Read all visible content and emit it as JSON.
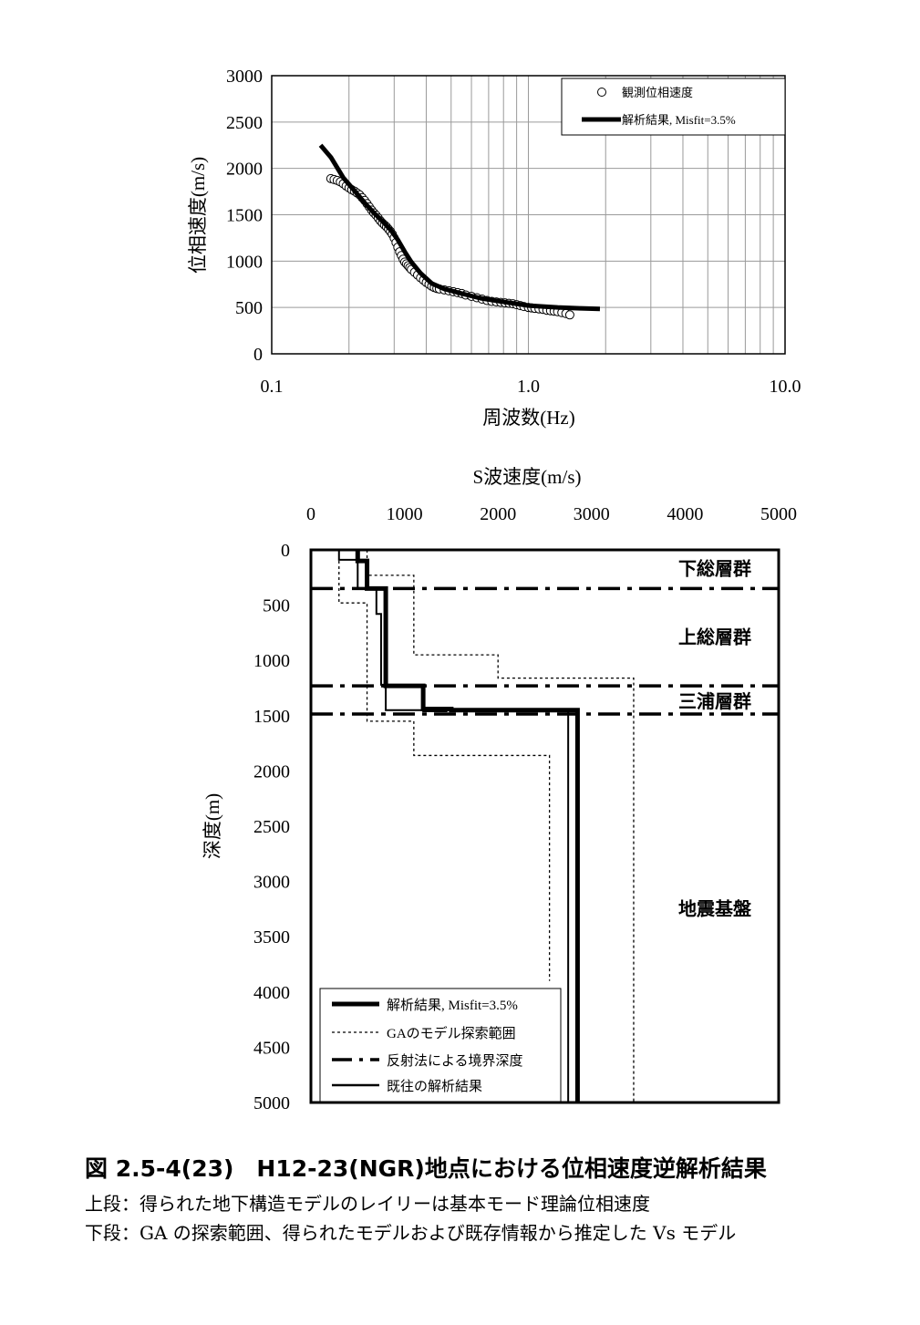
{
  "chart_data": [
    {
      "type": "scatter",
      "xscale": "log",
      "xlim": [
        0.1,
        10.0
      ],
      "ylim": [
        0,
        3000
      ],
      "xticks": [
        "0.1",
        "1.0",
        "10.0"
      ],
      "yticks": [
        "0",
        "500",
        "1000",
        "1500",
        "2000",
        "2500",
        "3000"
      ],
      "xlabel": "周波数(Hz)",
      "ylabel": "位相速度(m/s)",
      "grid": true,
      "legend_position": "top-right",
      "series": [
        {
          "name": "観測位相速度",
          "marker": "open-circle",
          "x": [
            0.17,
            0.175,
            0.18,
            0.185,
            0.19,
            0.195,
            0.2,
            0.205,
            0.21,
            0.215,
            0.22,
            0.225,
            0.23,
            0.235,
            0.24,
            0.245,
            0.25,
            0.255,
            0.26,
            0.265,
            0.27,
            0.275,
            0.28,
            0.285,
            0.29,
            0.295,
            0.3,
            0.305,
            0.31,
            0.315,
            0.32,
            0.325,
            0.33,
            0.335,
            0.34,
            0.345,
            0.35,
            0.36,
            0.37,
            0.38,
            0.39,
            0.4,
            0.41,
            0.42,
            0.43,
            0.44,
            0.45,
            0.47,
            0.49,
            0.51,
            0.53,
            0.55,
            0.57,
            0.6,
            0.63,
            0.66,
            0.69,
            0.72,
            0.75,
            0.78,
            0.81,
            0.84,
            0.87,
            0.9,
            0.93,
            0.96,
            1.0,
            1.03,
            1.06,
            1.1,
            1.14,
            1.18,
            1.22,
            1.26,
            1.3,
            1.35,
            1.4,
            1.45
          ],
          "y": [
            1890,
            1880,
            1870,
            1855,
            1835,
            1810,
            1790,
            1770,
            1755,
            1735,
            1715,
            1685,
            1655,
            1620,
            1585,
            1550,
            1520,
            1495,
            1465,
            1435,
            1410,
            1390,
            1370,
            1345,
            1320,
            1290,
            1250,
            1200,
            1150,
            1100,
            1060,
            1020,
            990,
            970,
            950,
            930,
            910,
            880,
            850,
            820,
            795,
            770,
            750,
            730,
            715,
            705,
            700,
            690,
            680,
            670,
            660,
            650,
            635,
            620,
            605,
            590,
            575,
            565,
            560,
            555,
            550,
            545,
            540,
            530,
            520,
            510,
            500,
            495,
            490,
            485,
            480,
            470,
            465,
            460,
            455,
            445,
            435,
            420
          ]
        },
        {
          "name": "解析結果, Misfit=3.5%",
          "style": "thick-line",
          "x": [
            0.155,
            0.17,
            0.19,
            0.21,
            0.23,
            0.25,
            0.27,
            0.29,
            0.31,
            0.33,
            0.35,
            0.38,
            0.42,
            0.47,
            0.55,
            0.65,
            0.8,
            1.0,
            1.3,
            1.6,
            1.9
          ],
          "y": [
            2250,
            2120,
            1900,
            1760,
            1630,
            1520,
            1430,
            1340,
            1230,
            1100,
            990,
            870,
            760,
            700,
            650,
            600,
            560,
            520,
            500,
            490,
            485
          ]
        }
      ]
    },
    {
      "type": "line",
      "xlim": [
        0,
        5000
      ],
      "ylim": [
        0,
        5000
      ],
      "y_inverted": true,
      "xticks": [
        "0",
        "1000",
        "2000",
        "3000",
        "4000",
        "5000"
      ],
      "yticks": [
        "0",
        "500",
        "1000",
        "1500",
        "2000",
        "2500",
        "3000",
        "3500",
        "4000",
        "4500",
        "5000"
      ],
      "xlabel": "S波速度(m/s)",
      "ylabel": "深度(m)",
      "grid": false,
      "legend_position": "bottom-left",
      "boundaries": [
        {
          "depth": 350
        },
        {
          "depth": 1230
        },
        {
          "depth": 1485
        }
      ],
      "layers": [
        {
          "label": "下総層群",
          "depth": 160
        },
        {
          "label": "上総層群",
          "depth": 780
        },
        {
          "label": "三浦層群",
          "depth": 1360
        },
        {
          "label": "地震基盤",
          "depth": 3240
        }
      ],
      "series": [
        {
          "name": "解析結果, Misfit=3.5%",
          "style": "thick",
          "x": [
            500,
            500,
            600,
            600,
            800,
            800,
            1200,
            1200,
            1500,
            1500,
            2850,
            2850
          ],
          "y": [
            0,
            100,
            100,
            350,
            350,
            1230,
            1230,
            1440,
            1440,
            1450,
            1450,
            5000
          ]
        },
        {
          "name": "GAのモデル探索範囲 (min)",
          "style": "dotted",
          "x": [
            300,
            300,
            600,
            600,
            1100,
            1100,
            2550,
            2550
          ],
          "y": [
            0,
            480,
            480,
            1550,
            1550,
            1860,
            1860,
            3900
          ]
        },
        {
          "name": "GAのモデル探索範囲 (max)",
          "style": "dotted",
          "x": [
            600,
            600,
            1100,
            1100,
            2000,
            2000,
            3450,
            3450
          ],
          "y": [
            0,
            230,
            230,
            950,
            950,
            1160,
            1160,
            5000
          ]
        },
        {
          "name": "既往の解析結果",
          "style": "double-thin",
          "x": [
            300,
            300,
            500,
            500,
            700,
            700,
            750,
            750,
            800,
            800,
            1200,
            1200,
            1450,
            1450,
            2750,
            2750
          ],
          "y": [
            0,
            90,
            90,
            350,
            350,
            580,
            580,
            1220,
            1220,
            1450,
            1450,
            1460,
            1460,
            1450,
            1450,
            5000
          ]
        }
      ]
    }
  ],
  "legend_top": {
    "item1": "観測位相速度",
    "item2": "解析結果, Misfit=3.5%"
  },
  "legend_bottom": {
    "item1": "解析結果, Misfit=3.5%",
    "item2": "GAのモデル探索範囲",
    "item3": "反射法による境界深度",
    "item4": "既往の解析結果"
  },
  "caption": {
    "title": "図 2.5-4(23)　H12-23(NGR)地点における位相速度逆解析結果",
    "line1": "上段：得られた地下構造モデルのレイリーは基本モード理論位相速度",
    "line2": "下段：GA の探索範囲、得られたモデルおよび既存情報から推定した Vs モデル"
  }
}
